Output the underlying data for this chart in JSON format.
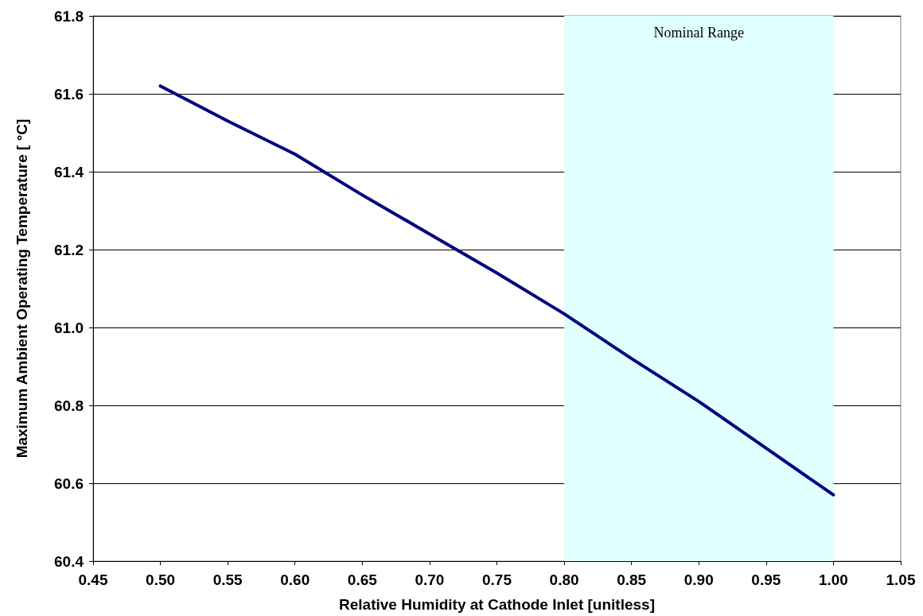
{
  "chart_data": {
    "type": "line",
    "xlabel": "Relative Humidity at Cathode Inlet [unitless]",
    "ylabel": "Maximum Ambient Operating Temperature [ °C]",
    "x": [
      0.5,
      0.55,
      0.6,
      0.65,
      0.7,
      0.75,
      0.8,
      0.85,
      0.9,
      0.95,
      1.0
    ],
    "series": [
      {
        "color": "#000080",
        "values": [
          61.62,
          61.53,
          61.445,
          61.34,
          61.24,
          61.14,
          61.035,
          60.92,
          60.81,
          60.69,
          60.57
        ]
      }
    ],
    "xlim": [
      0.45,
      1.05
    ],
    "xticks": [
      {
        "value": 0.45,
        "label": "0.45"
      },
      {
        "value": 0.5,
        "label": "0.50"
      },
      {
        "value": 0.55,
        "label": "0.55"
      },
      {
        "value": 0.6,
        "label": "0.60"
      },
      {
        "value": 0.65,
        "label": "0.65"
      },
      {
        "value": 0.7,
        "label": "0.70"
      },
      {
        "value": 0.75,
        "label": "0.75"
      },
      {
        "value": 0.8,
        "label": "0.80"
      },
      {
        "value": 0.85,
        "label": "0.85"
      },
      {
        "value": 0.9,
        "label": "0.90"
      },
      {
        "value": 0.95,
        "label": "0.95"
      },
      {
        "value": 1.0,
        "label": "1.00"
      },
      {
        "value": 1.05,
        "label": "1.05"
      }
    ],
    "ylim": [
      60.4,
      61.8
    ],
    "yticks": [
      60.4,
      60.6,
      60.8,
      {
        "value": 61.0,
        "label": "61.0"
      },
      61.2,
      61.4,
      61.6,
      61.8
    ],
    "bands": [
      {
        "axis": "x",
        "from": 0.8,
        "to": 1.0,
        "label": "Nominal Range",
        "color": "#e0ffff"
      }
    ],
    "grid": "y",
    "marker": "none",
    "line_style": "solid"
  }
}
